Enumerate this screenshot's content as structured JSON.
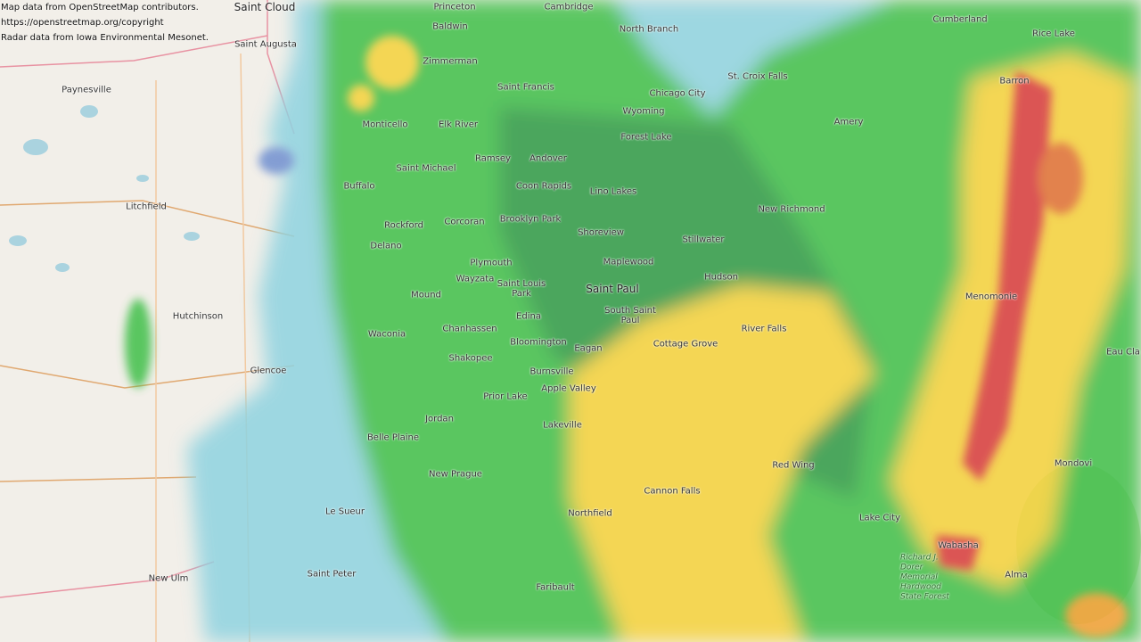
{
  "attribution": {
    "line1": "Map data from OpenStreetMap contributors.",
    "line2": "https://openstreetmap.org/copyright",
    "line3": "Radar data from Iowa Environmental Mesonet."
  },
  "colors": {
    "land": "#f2efe9",
    "water": "#aad3df",
    "radar_light": "#8fd3e0",
    "radar_blue": "#6f8fd0",
    "radar_green": "#3fbf4a",
    "radar_dark_green": "#2e9a45",
    "radar_yellow": "#f5d23a",
    "radar_orange": "#f0a030",
    "radar_red": "#d83a3a"
  },
  "places": [
    {
      "name": "Saint Cloud",
      "size": "big"
    },
    {
      "name": "Saint Augusta"
    },
    {
      "name": "Princeton"
    },
    {
      "name": "Cambridge"
    },
    {
      "name": "North Branch"
    },
    {
      "name": "Paynesville"
    },
    {
      "name": "Baldwin"
    },
    {
      "name": "Zimmerman"
    },
    {
      "name": "Saint Francis"
    },
    {
      "name": "Chicago City"
    },
    {
      "name": "St. Croix Falls"
    },
    {
      "name": "Cumberland"
    },
    {
      "name": "Rice Lake"
    },
    {
      "name": "Barron"
    },
    {
      "name": "Monticello"
    },
    {
      "name": "Elk River"
    },
    {
      "name": "Wyoming"
    },
    {
      "name": "Forest Lake"
    },
    {
      "name": "Amery"
    },
    {
      "name": "Ramsey"
    },
    {
      "name": "Andover"
    },
    {
      "name": "Saint Michael"
    },
    {
      "name": "Buffalo"
    },
    {
      "name": "Coon Rapids"
    },
    {
      "name": "Lino Lakes"
    },
    {
      "name": "Litchfield"
    },
    {
      "name": "New Richmond"
    },
    {
      "name": "Corcoran"
    },
    {
      "name": "Brooklyn Park"
    },
    {
      "name": "Rockford"
    },
    {
      "name": "Shoreview"
    },
    {
      "name": "Stillwater"
    },
    {
      "name": "Delano"
    },
    {
      "name": "Plymouth"
    },
    {
      "name": "Maplewood"
    },
    {
      "name": "Wayzata"
    },
    {
      "name": "Saint Louis Park"
    },
    {
      "name": "Hudson"
    },
    {
      "name": "Saint Paul",
      "size": "big"
    },
    {
      "name": "Mound"
    },
    {
      "name": "Menomonie"
    },
    {
      "name": "South Saint Paul"
    },
    {
      "name": "Hutchinson"
    },
    {
      "name": "Edina"
    },
    {
      "name": "Chanhassen"
    },
    {
      "name": "River Falls"
    },
    {
      "name": "Waconia"
    },
    {
      "name": "Bloomington"
    },
    {
      "name": "Cottage Grove"
    },
    {
      "name": "Eagan"
    },
    {
      "name": "Eau Cla"
    },
    {
      "name": "Shakopee"
    },
    {
      "name": "Glencoe"
    },
    {
      "name": "Burnsville"
    },
    {
      "name": "Apple Valley"
    },
    {
      "name": "Prior Lake"
    },
    {
      "name": "Jordan"
    },
    {
      "name": "Lakeville"
    },
    {
      "name": "Belle Plaine"
    },
    {
      "name": "Red Wing"
    },
    {
      "name": "Mondovi"
    },
    {
      "name": "New Prague"
    },
    {
      "name": "Cannon Falls"
    },
    {
      "name": "Le Sueur"
    },
    {
      "name": "Northfield"
    },
    {
      "name": "Lake City"
    },
    {
      "name": "Wabasha"
    },
    {
      "name": "Alma"
    },
    {
      "name": "Saint Peter"
    },
    {
      "name": "New Ulm"
    },
    {
      "name": "Faribault"
    },
    {
      "name": "Richard J. Dorer Memorial Hardwood State Forest",
      "size": "green"
    }
  ]
}
